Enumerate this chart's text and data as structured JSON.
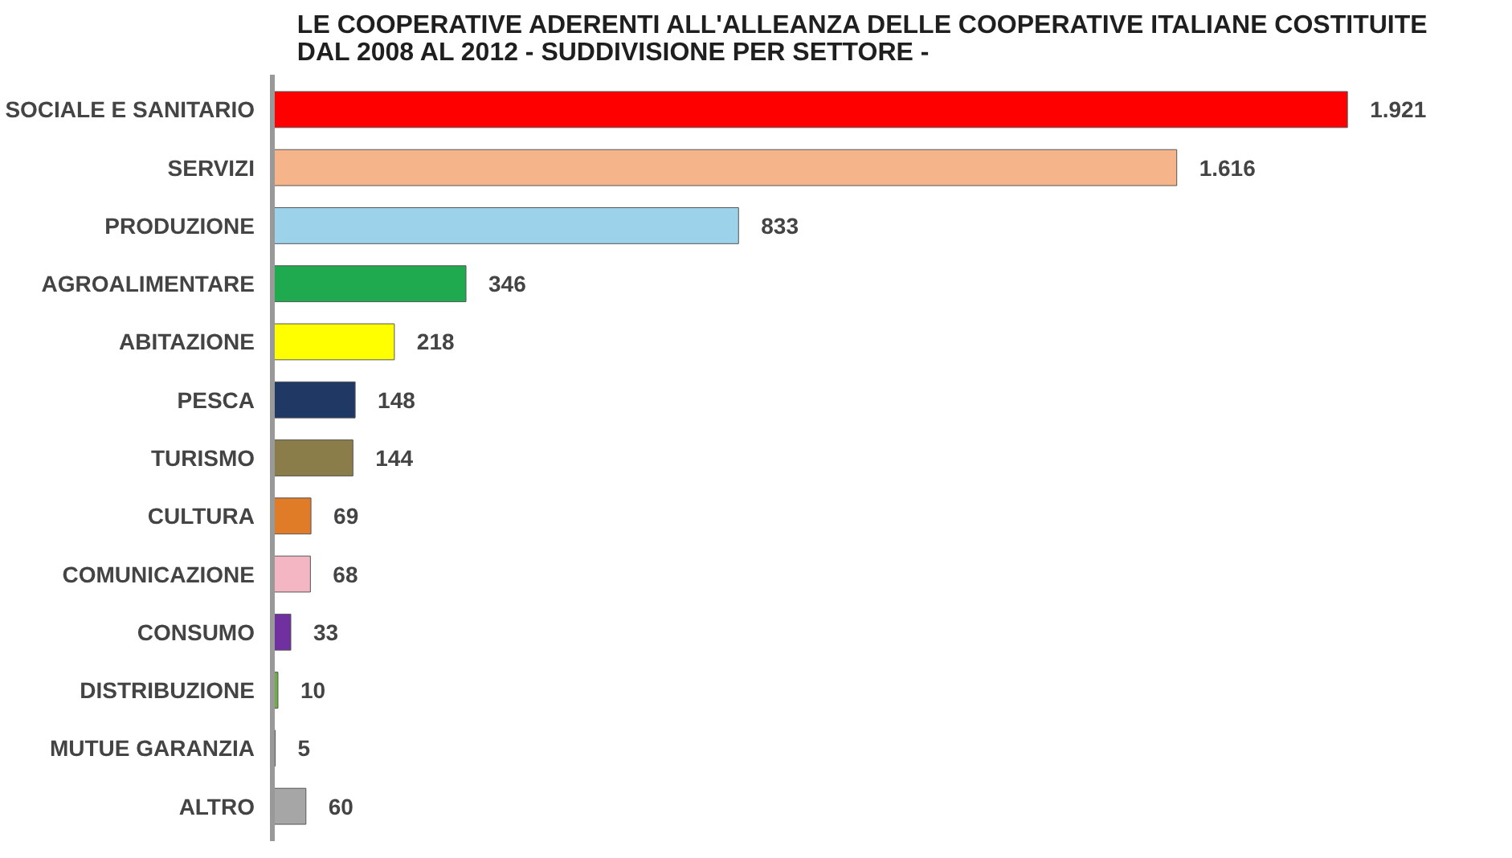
{
  "chart_data": {
    "type": "bar",
    "orientation": "horizontal",
    "title": "LE COOPERATIVE ADERENTI ALL'ALLEANZA DELLE COOPERATIVE ITALIANE COSTITUITE DAL 2008 AL 2012 - SUDDIVISIONE PER SETTORE -",
    "categories": [
      "SOCIALE E SANITARIO",
      "SERVIZI",
      "PRODUZIONE",
      "AGROALIMENTARE",
      "ABITAZIONE",
      "PESCA",
      "TURISMO",
      "CULTURA",
      "COMUNICAZIONE",
      "CONSUMO",
      "DISTRIBUZIONE",
      "MUTUE GARANZIA",
      "ALTRO"
    ],
    "values": [
      1921,
      1616,
      833,
      346,
      218,
      148,
      144,
      69,
      68,
      33,
      10,
      5,
      60
    ],
    "value_labels": [
      "1.921",
      "1.616",
      "833",
      "346",
      "218",
      "148",
      "144",
      "69",
      "68",
      "33",
      "10",
      "5",
      "60"
    ],
    "colors": [
      "#ff0000",
      "#f6b48a",
      "#9dd3ea",
      "#1faa50",
      "#ffff00",
      "#1f3864",
      "#8b7d4a",
      "#e07b28",
      "#f4b6c2",
      "#7030a0",
      "#70ad47",
      "#c00000",
      "#a6a6a6"
    ],
    "tick_labels": "y",
    "grid": false
  }
}
